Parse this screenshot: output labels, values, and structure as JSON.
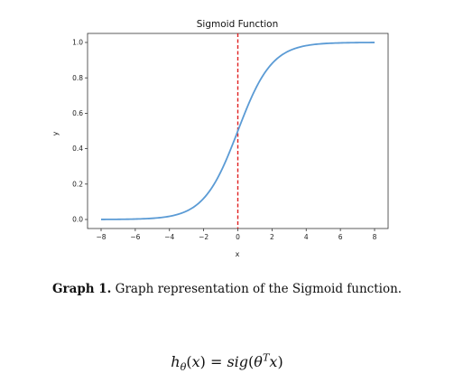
{
  "chart_data": {
    "type": "line",
    "title": "Sigmoid Function",
    "xlabel": "x",
    "ylabel": "y",
    "xlim": [
      -8,
      8
    ],
    "ylim": [
      0,
      1
    ],
    "xticks": [
      -8,
      -6,
      -4,
      -2,
      0,
      2,
      4,
      6,
      8
    ],
    "xtick_labels": [
      "−8",
      "−6",
      "−4",
      "−2",
      "0",
      "2",
      "4",
      "6",
      "8"
    ],
    "yticks": [
      0.0,
      0.2,
      0.4,
      0.6,
      0.8,
      1.0
    ],
    "ytick_labels": [
      "0.0",
      "0.2",
      "0.4",
      "0.6",
      "0.8",
      "1.0"
    ],
    "grid": false,
    "series": [
      {
        "function": "1/(1+exp(-x))",
        "color": "#5b9bd5",
        "x": [
          -8,
          -7,
          -6,
          -5,
          -4,
          -3,
          -2,
          -1,
          -0.5,
          0,
          0.5,
          1,
          2,
          3,
          4,
          5,
          6,
          7,
          8
        ],
        "y": [
          0.0003,
          0.0009,
          0.0025,
          0.0067,
          0.018,
          0.047,
          0.119,
          0.269,
          0.378,
          0.5,
          0.622,
          0.731,
          0.881,
          0.953,
          0.982,
          0.993,
          0.9975,
          0.9991,
          0.9997
        ]
      }
    ],
    "annotations": [
      {
        "type": "vline",
        "x": 0,
        "style": "dashed",
        "color": "#e02020"
      }
    ]
  },
  "caption": {
    "label": "Graph 1.",
    "text": " Graph representation of the Sigmoid function."
  },
  "formula": {
    "text": "h_θ(x) = sig(θ^T x)"
  }
}
